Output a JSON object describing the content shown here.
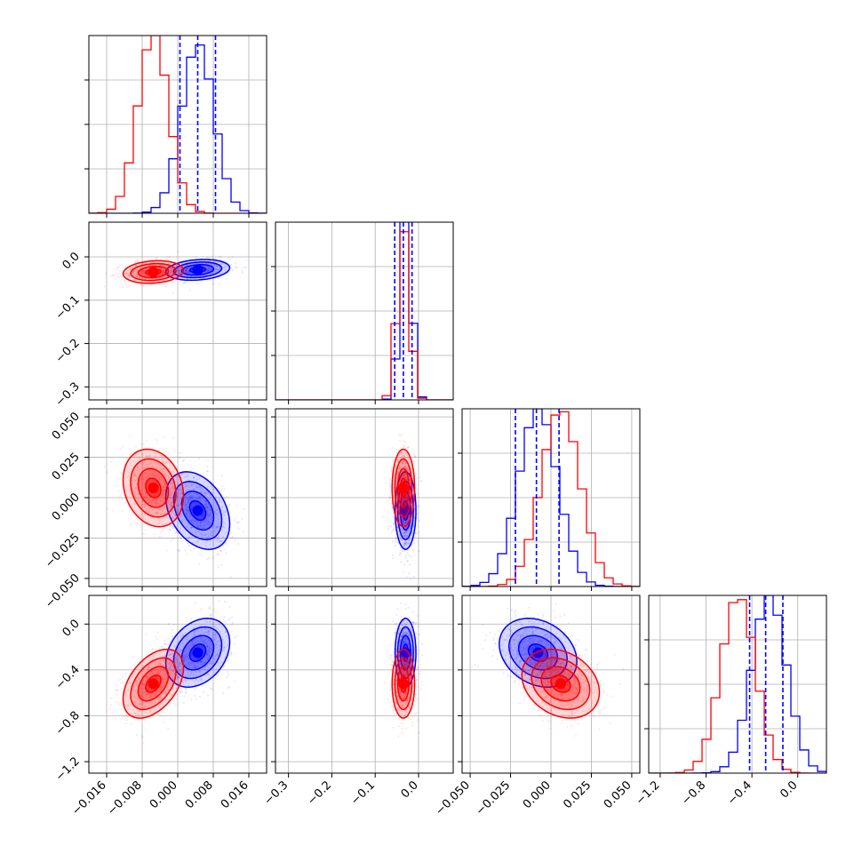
{
  "chart_data": {
    "type": "corner",
    "parameters": 4,
    "colors": {
      "blue": "#0000ff",
      "red": "#ff0000"
    },
    "axes": [
      {
        "range": [
          -0.02,
          0.02
        ],
        "ticks": [
          "-0.016",
          "-0.008",
          "0.000",
          "0.008",
          "0.016"
        ],
        "tick_values": [
          -0.016,
          -0.008,
          0.0,
          0.008,
          0.016
        ]
      },
      {
        "range": [
          -0.33,
          0.08
        ],
        "ticks": [
          "-0.3",
          "-0.2",
          "-0.1",
          "0.0"
        ],
        "tick_values": [
          -0.3,
          -0.2,
          -0.1,
          0.0
        ]
      },
      {
        "range": [
          -0.055,
          0.055
        ],
        "ticks": [
          "-0.050",
          "-0.025",
          "0.000",
          "0.025",
          "0.050"
        ],
        "tick_values": [
          -0.05,
          -0.025,
          0.0,
          0.025,
          0.05
        ]
      },
      {
        "range": [
          -1.3,
          0.25
        ],
        "ticks": [
          "-1.2",
          "-0.8",
          "-0.4",
          "0.0"
        ],
        "tick_values": [
          -1.2,
          -0.8,
          -0.4,
          0.0
        ]
      }
    ],
    "y_ticks": {
      "1": [
        "0.0",
        "-0.1",
        "-0.2",
        "-0.3"
      ],
      "2": [
        "0.050",
        "0.025",
        "0.000",
        "-0.025",
        "-0.050"
      ],
      "3": [
        "0.0",
        "-0.4",
        "-0.8",
        "-1.2"
      ]
    },
    "series": [
      {
        "name": "",
        "color": "blue",
        "mean": [
          0.0045,
          -0.03,
          -0.008,
          -0.25
        ],
        "std": [
          0.0036,
          0.012,
          0.012,
          0.15
        ],
        "quantiles": [
          [
            0.0005,
            0.0045,
            0.0085
          ],
          [
            -0.055,
            -0.035,
            -0.015
          ],
          [
            -0.022,
            -0.009,
            0.005
          ],
          [
            -0.42,
            -0.28,
            -0.13
          ]
        ],
        "corr": {
          "0-1": 0.2,
          "0-2": -0.35,
          "0-3": 0.3,
          "1-2": 0.0,
          "1-3": 0.0,
          "2-3": -0.25
        }
      },
      {
        "name": "",
        "color": "red",
        "mean": [
          -0.0055,
          -0.035,
          0.006,
          -0.52
        ],
        "std": [
          0.0034,
          0.013,
          0.012,
          0.15
        ],
        "quantiles": null,
        "corr": {
          "0-1": 0.15,
          "0-2": -0.2,
          "0-3": 0.45,
          "1-2": 0.0,
          "1-3": 0.0,
          "2-3": -0.25
        }
      }
    ]
  }
}
